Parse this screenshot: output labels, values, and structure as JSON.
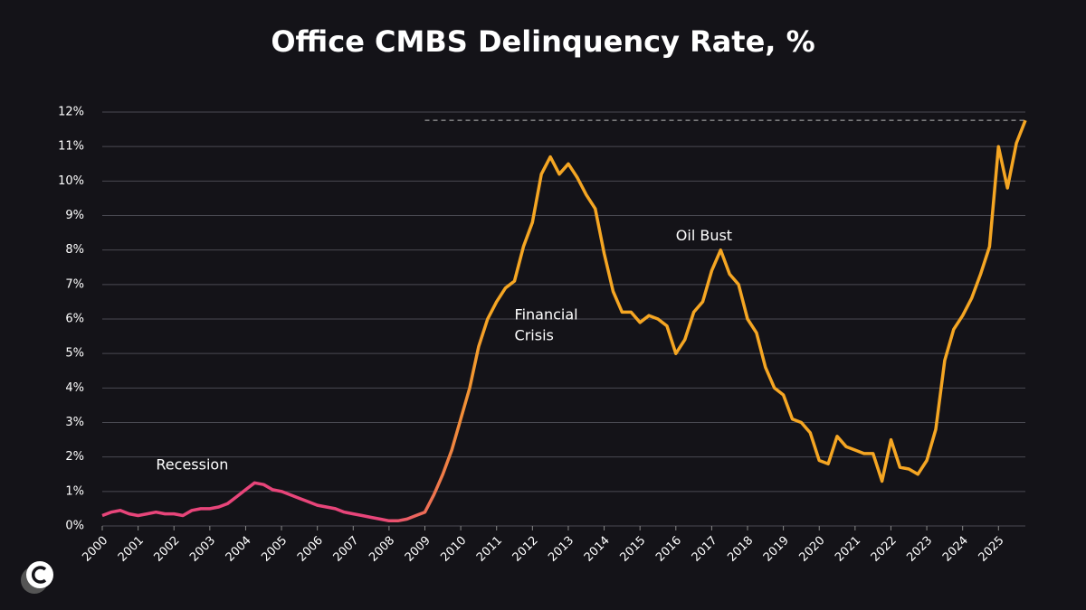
{
  "chart_data": {
    "type": "line",
    "title": "Office CMBS Delinquency Rate, %",
    "x": [
      2000,
      2000.25,
      2000.5,
      2000.75,
      2001,
      2001.25,
      2001.5,
      2001.75,
      2002,
      2002.25,
      2002.5,
      2002.75,
      2003,
      2003.25,
      2003.5,
      2003.75,
      2004,
      2004.25,
      2004.5,
      2004.75,
      2005,
      2005.25,
      2005.5,
      2005.75,
      2006,
      2006.25,
      2006.5,
      2006.75,
      2007,
      2007.25,
      2007.5,
      2007.75,
      2008,
      2008.25,
      2008.5,
      2008.75,
      2009,
      2009.25,
      2009.5,
      2009.75,
      2010,
      2010.25,
      2010.5,
      2010.75,
      2011,
      2011.25,
      2011.5,
      2011.75,
      2012,
      2012.25,
      2012.5,
      2012.75,
      2013,
      2013.25,
      2013.5,
      2013.75,
      2014,
      2014.25,
      2014.5,
      2014.75,
      2015,
      2015.25,
      2015.5,
      2015.75,
      2016,
      2016.25,
      2016.5,
      2016.75,
      2017,
      2017.25,
      2017.5,
      2017.75,
      2018,
      2018.25,
      2018.5,
      2018.75,
      2019,
      2019.25,
      2019.5,
      2019.75,
      2020,
      2020.25,
      2020.5,
      2020.75,
      2021,
      2021.25,
      2021.5,
      2021.75,
      2022,
      2022.25,
      2022.5,
      2022.75,
      2023,
      2023.25,
      2023.5,
      2023.75,
      2024,
      2024.25,
      2024.5,
      2024.75,
      2025,
      2025.25,
      2025.5,
      2025.75
    ],
    "series": [
      {
        "name": "Office CMBS Delinquency Rate",
        "color": "#f5a623",
        "start_color": "#e8457a",
        "values": [
          0.3,
          0.4,
          0.45,
          0.35,
          0.3,
          0.35,
          0.4,
          0.35,
          0.35,
          0.3,
          0.45,
          0.5,
          0.5,
          0.55,
          0.65,
          0.85,
          1.05,
          1.25,
          1.2,
          1.05,
          1.0,
          0.9,
          0.8,
          0.7,
          0.6,
          0.55,
          0.5,
          0.4,
          0.35,
          0.3,
          0.25,
          0.2,
          0.15,
          0.15,
          0.2,
          0.3,
          0.4,
          0.9,
          1.5,
          2.2,
          3.1,
          4.0,
          5.2,
          6.0,
          6.5,
          6.9,
          7.1,
          8.1,
          8.8,
          10.2,
          10.7,
          10.2,
          10.5,
          10.1,
          9.6,
          9.2,
          7.9,
          6.8,
          6.2,
          6.2,
          5.9,
          6.1,
          6.0,
          5.8,
          5.0,
          5.4,
          6.2,
          6.5,
          7.4,
          8.0,
          7.3,
          7.0,
          6.0,
          5.6,
          4.6,
          4.0,
          3.8,
          3.1,
          3.0,
          2.7,
          1.9,
          1.8,
          2.6,
          2.3,
          2.2,
          2.1,
          2.1,
          1.3,
          2.5,
          1.7,
          1.65,
          1.5,
          1.9,
          2.8,
          4.8,
          5.7,
          6.1,
          6.6,
          7.3,
          8.1,
          11.0,
          9.8,
          11.1,
          11.76
        ]
      }
    ],
    "xlim": [
      2000,
      2025.75
    ],
    "xticks": [
      2000,
      2001,
      2002,
      2003,
      2004,
      2005,
      2006,
      2007,
      2008,
      2009,
      2010,
      2011,
      2012,
      2013,
      2014,
      2015,
      2016,
      2017,
      2018,
      2019,
      2020,
      2021,
      2022,
      2023,
      2024,
      2025
    ],
    "ylim": [
      0,
      12
    ],
    "yticks": [
      {
        "value": 0,
        "label": "0%"
      },
      {
        "value": 1,
        "label": "1%"
      },
      {
        "value": 2,
        "label": "2%"
      },
      {
        "value": 3,
        "label": "3%"
      },
      {
        "value": 4,
        "label": "4%"
      },
      {
        "value": 5,
        "label": "5%"
      },
      {
        "value": 6,
        "label": "6%"
      },
      {
        "value": 7,
        "label": "7%"
      },
      {
        "value": 8,
        "label": "8%"
      },
      {
        "value": 9,
        "label": "9%"
      },
      {
        "value": 10,
        "label": "10%"
      },
      {
        "value": 11,
        "label": "11%"
      },
      {
        "value": 12,
        "label": "12%"
      }
    ],
    "grid": true,
    "reference_line": {
      "y": 11.76,
      "x_start": 2009
    },
    "annotations": [
      {
        "text": "Recession",
        "x": 2001.5,
        "y": 1.75
      },
      {
        "text": "Financial",
        "x": 2011.5,
        "y": 6.1
      },
      {
        "text": "Crisis",
        "x": 2011.5,
        "y": 5.5
      },
      {
        "text": "Oil Bust",
        "x": 2016,
        "y": 8.4
      }
    ]
  }
}
